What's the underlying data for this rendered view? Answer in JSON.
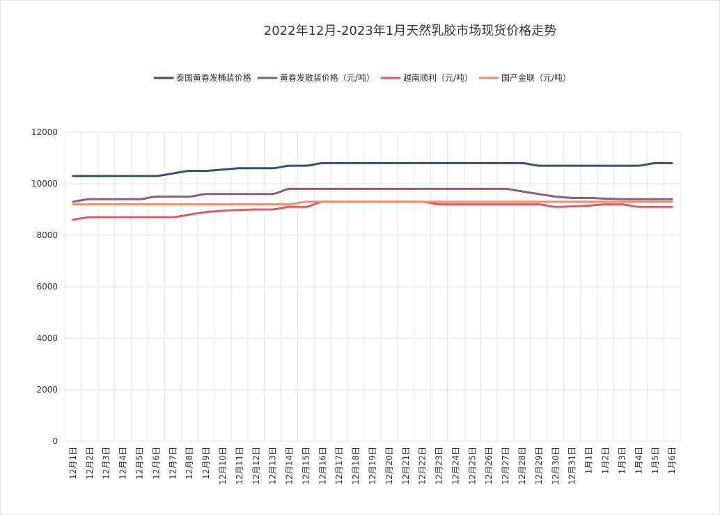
{
  "chart_data": {
    "type": "line",
    "title": "2022年12月-2023年1月天然乳胶市场现货价格走势",
    "xlabel": "",
    "ylabel": "",
    "ylim": [
      0,
      12000
    ],
    "yticks": [
      0,
      2000,
      4000,
      6000,
      8000,
      10000,
      12000
    ],
    "grid": true,
    "legend_position": "top-center",
    "categories": [
      "12月1日",
      "12月2日",
      "12月3日",
      "12月4日",
      "12月5日",
      "12月6日",
      "12月7日",
      "12月8日",
      "12月9日",
      "12月10日",
      "12月11日",
      "12月12日",
      "12月13日",
      "12月14日",
      "12月15日",
      "12月16日",
      "12月17日",
      "12月18日",
      "12月19日",
      "12月20日",
      "12月21日",
      "12月22日",
      "12月23日",
      "12月24日",
      "12月25日",
      "12月26日",
      "12月27日",
      "12月28日",
      "12月29日",
      "12月30日",
      "12月31日",
      "1月1日",
      "1月2日",
      "1月3日",
      "1月4日",
      "1月5日",
      "1月6日"
    ],
    "series": [
      {
        "name": "泰国黄春发桶装价格",
        "color": "#2f5275",
        "values": [
          10300,
          10300,
          10300,
          10300,
          10300,
          10300,
          10400,
          10500,
          10500,
          10550,
          10600,
          10600,
          10600,
          10700,
          10700,
          10800,
          10800,
          10800,
          10800,
          10800,
          10800,
          10800,
          10800,
          10800,
          10800,
          10800,
          10800,
          10800,
          10700,
          10700,
          10700,
          10700,
          10700,
          10700,
          10700,
          10800,
          10800
        ]
      },
      {
        "name": "黄春发散装价格（元/吨）",
        "color": "#8f5a7e",
        "values": [
          9300,
          9400,
          9400,
          9400,
          9400,
          9500,
          9500,
          9500,
          9600,
          9600,
          9600,
          9600,
          9600,
          9800,
          9800,
          9800,
          9800,
          9800,
          9800,
          9800,
          9800,
          9800,
          9800,
          9800,
          9800,
          9800,
          9800,
          9700,
          9600,
          9500,
          9450,
          9450,
          9420,
          9400,
          9400,
          9400,
          9400
        ]
      },
      {
        "name": "越南顺利（元/吨）",
        "color": "#df5a68",
        "values": [
          8600,
          8700,
          8700,
          8700,
          8700,
          8700,
          8700,
          8800,
          8900,
          8950,
          8980,
          9000,
          9000,
          9100,
          9100,
          9300,
          9300,
          9300,
          9300,
          9300,
          9300,
          9300,
          9200,
          9200,
          9200,
          9200,
          9200,
          9200,
          9200,
          9100,
          9120,
          9150,
          9200,
          9200,
          9100,
          9100,
          9100
        ]
      },
      {
        "name": "国产金联（元/吨）",
        "color": "#f28d68",
        "values": [
          9200,
          9200,
          9200,
          9200,
          9200,
          9200,
          9200,
          9200,
          9200,
          9200,
          9200,
          9200,
          9200,
          9200,
          9300,
          9300,
          9300,
          9300,
          9300,
          9300,
          9300,
          9300,
          9300,
          9300,
          9300,
          9300,
          9300,
          9300,
          9300,
          9300,
          9300,
          9300,
          9300,
          9300,
          9300,
          9300,
          9300
        ]
      }
    ]
  }
}
